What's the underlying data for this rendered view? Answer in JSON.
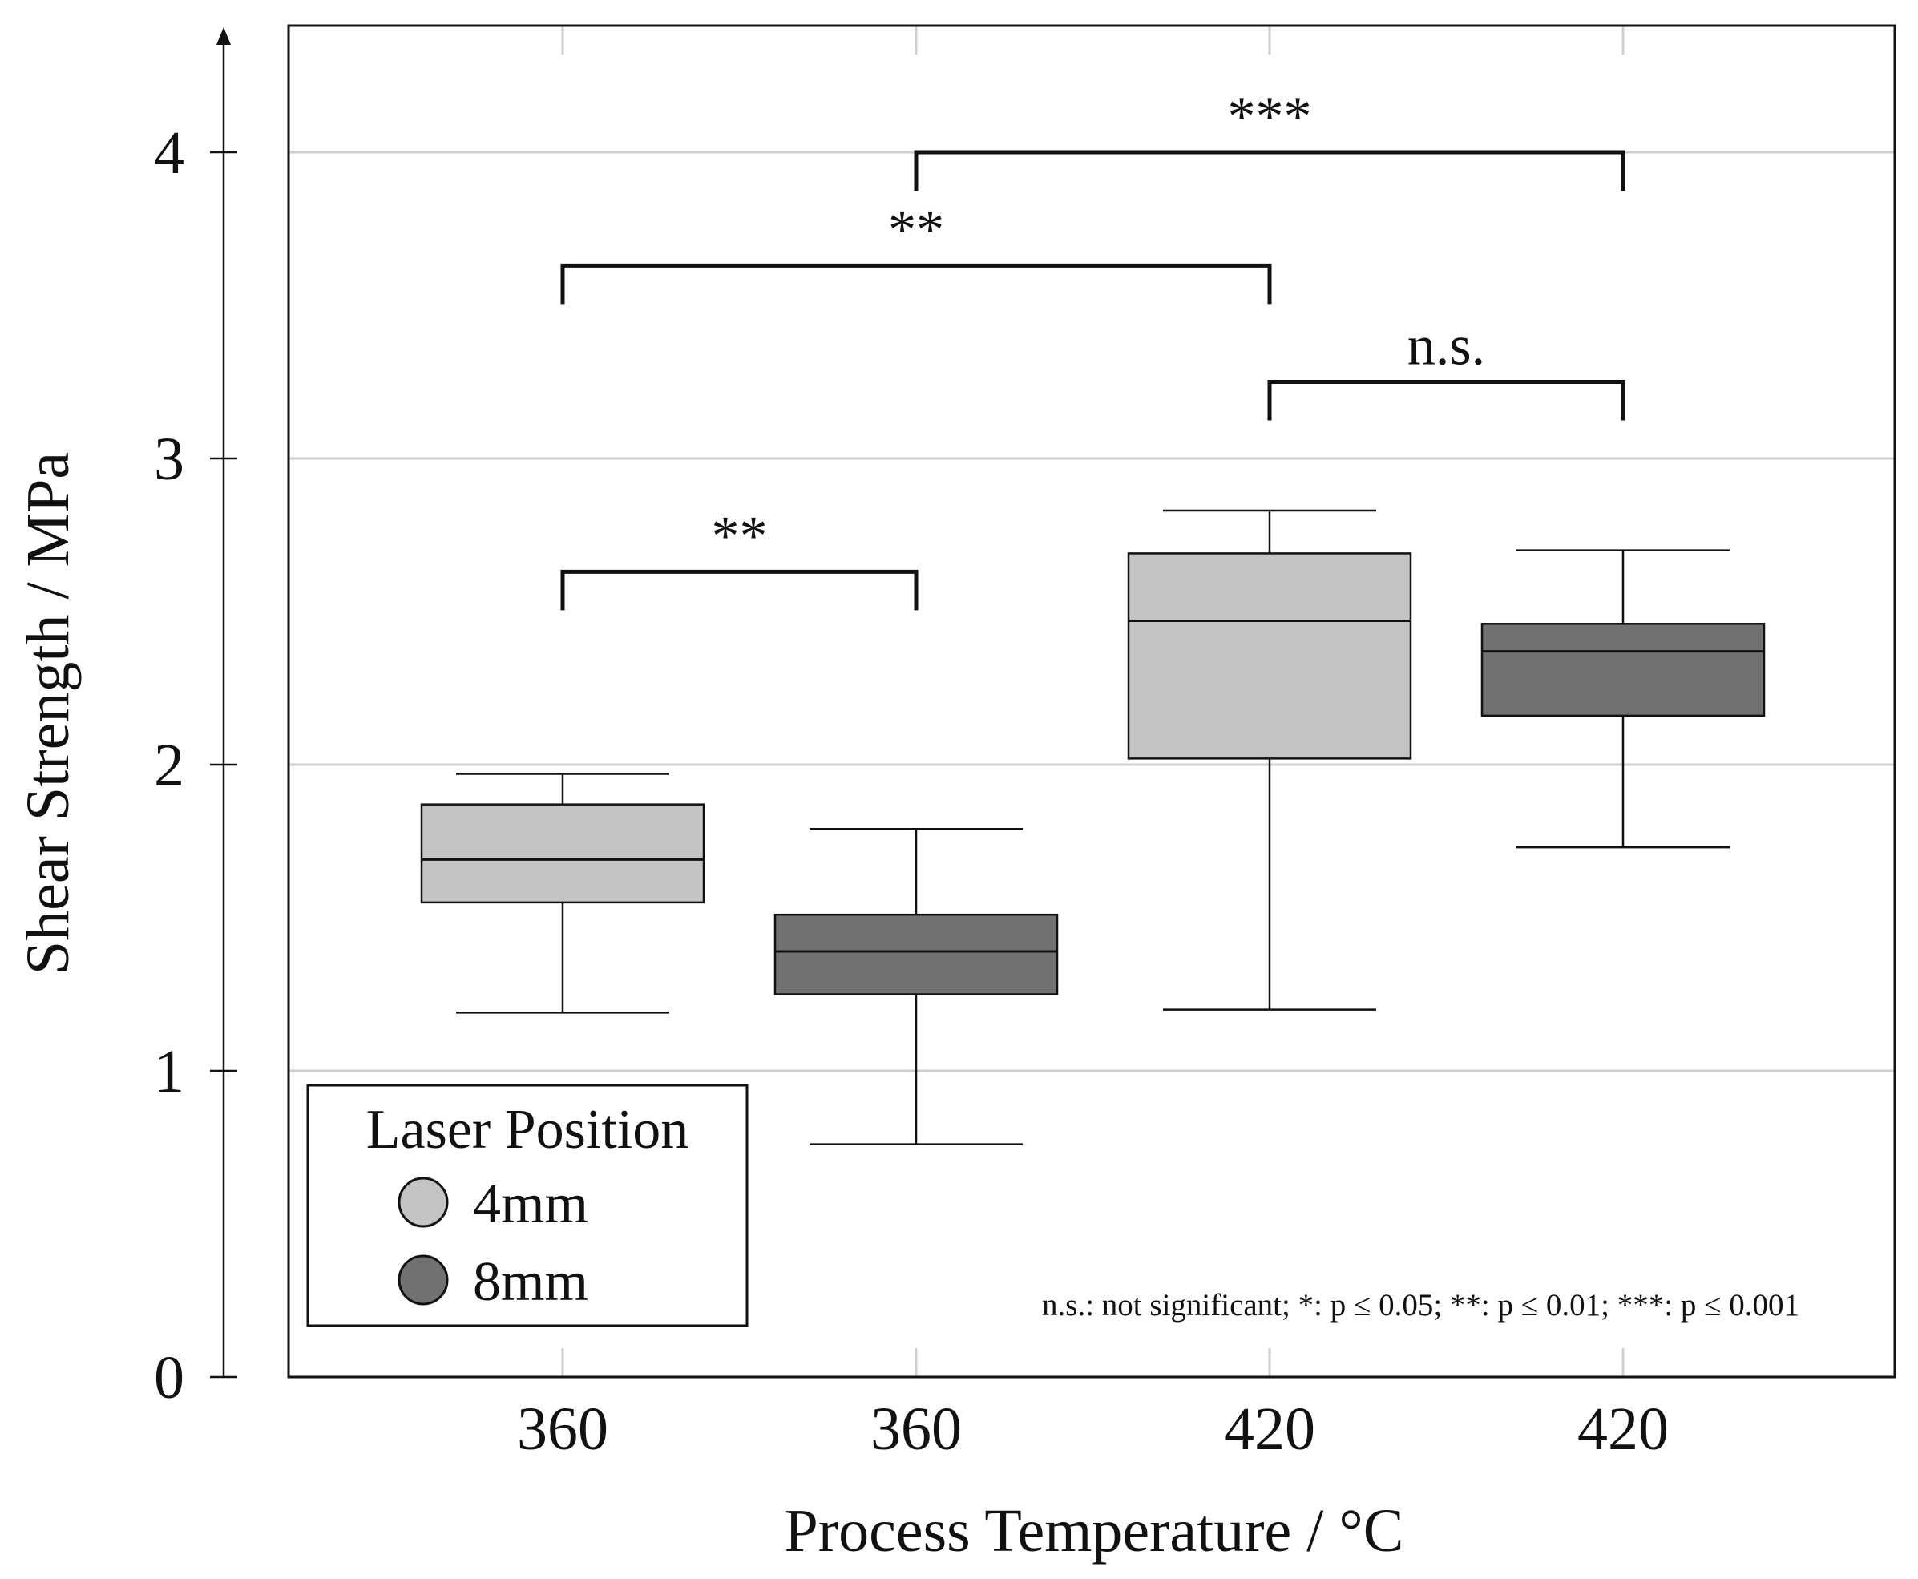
{
  "chart_data": {
    "type": "boxplot",
    "xlabel": "Process Temperature / °C",
    "ylabel": "Shear Strength / MPa",
    "ylim": [
      0,
      4.4
    ],
    "y_ticks": [
      0,
      1,
      2,
      3,
      4
    ],
    "grid": "horizontal",
    "categories": [
      "360",
      "360",
      "420",
      "420"
    ],
    "series": [
      {
        "name": "4mm",
        "color": "#c4c4c4",
        "boxes": [
          {
            "category_index": 0,
            "whisker_low": 1.19,
            "q1": 1.55,
            "median": 1.69,
            "q3": 1.87,
            "whisker_high": 1.97
          },
          {
            "category_index": 2,
            "whisker_low": 1.2,
            "q1": 2.02,
            "median": 2.47,
            "q3": 2.69,
            "whisker_high": 2.83
          }
        ]
      },
      {
        "name": "8mm",
        "color": "#717171",
        "boxes": [
          {
            "category_index": 1,
            "whisker_low": 0.76,
            "q1": 1.25,
            "median": 1.39,
            "q3": 1.51,
            "whisker_high": 1.79
          },
          {
            "category_index": 3,
            "whisker_low": 1.73,
            "q1": 2.16,
            "median": 2.37,
            "q3": 2.46,
            "whisker_high": 2.7
          }
        ]
      }
    ],
    "significance": [
      {
        "from": 0,
        "to": 1,
        "level": 2.63,
        "label": "**"
      },
      {
        "from": 0,
        "to": 2,
        "level": 3.63,
        "label": "**"
      },
      {
        "from": 2,
        "to": 3,
        "level": 3.25,
        "label": "n.s."
      },
      {
        "from": 1,
        "to": 3,
        "level": 4.0,
        "label": "***"
      }
    ],
    "legend": {
      "title": "Laser Position",
      "placement": "bottom-left",
      "entries": [
        "4mm",
        "8mm"
      ]
    },
    "footnote": "n.s.: not significant; *: p ≤ 0.05; **: p ≤ 0.01; ***: p ≤ 0.001"
  }
}
